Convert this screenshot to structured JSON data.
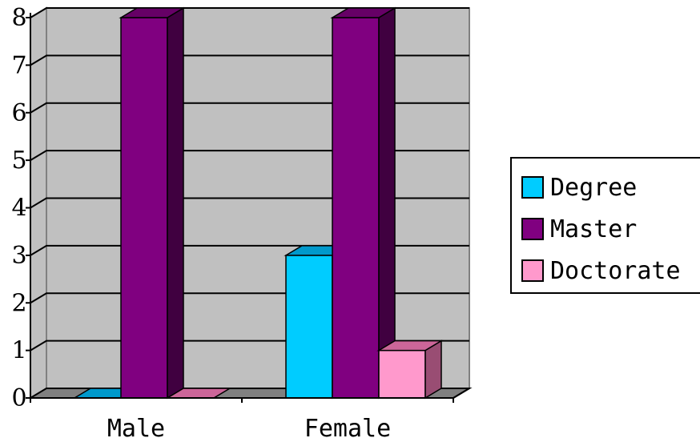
{
  "chart_data": {
    "type": "bar",
    "style": "3d-clustered-column",
    "categories": [
      "Male",
      "Female"
    ],
    "series": [
      {
        "name": "Degree",
        "values": [
          0,
          3
        ],
        "color": "#00ccff",
        "top_color": "#0099cc",
        "side_color": "#0088aa"
      },
      {
        "name": "Master",
        "values": [
          8,
          8
        ],
        "color": "#800080",
        "top_color": "#660066",
        "side_color": "#400040"
      },
      {
        "name": "Doctorate",
        "values": [
          0,
          1
        ],
        "color": "#ff99cc",
        "top_color": "#cc6699",
        "side_color": "#994d73"
      }
    ],
    "y_ticks": [
      "0",
      "1",
      "2",
      "3",
      "4",
      "5",
      "6",
      "7",
      "8"
    ],
    "ylim": [
      0,
      8
    ],
    "grid": true,
    "legend_position": "right",
    "wall_color": "#c0c0c0",
    "floor_color": "#808080"
  }
}
